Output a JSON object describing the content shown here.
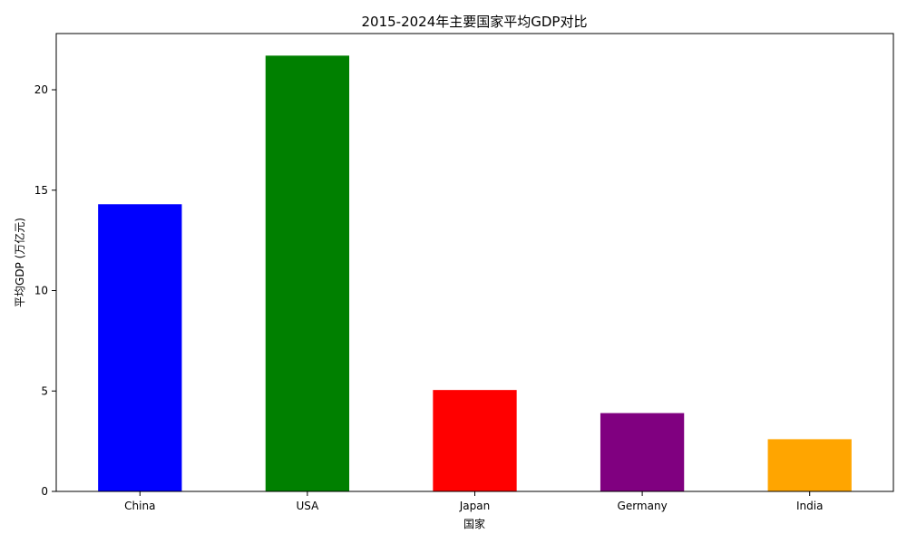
{
  "chart_data": {
    "type": "bar",
    "title": "2015-2024年主要国家平均GDP对比",
    "xlabel": "国家",
    "ylabel": "平均GDP (万亿元)",
    "categories": [
      "China",
      "USA",
      "Japan",
      "Germany",
      "India"
    ],
    "values": [
      14.3,
      21.7,
      5.05,
      3.9,
      2.6
    ],
    "colors": [
      "#0000ff",
      "#008000",
      "#ff0000",
      "#800080",
      "#ffa500"
    ],
    "ylim": [
      0,
      22.8
    ],
    "yticks": [
      0,
      5,
      10,
      15,
      20
    ],
    "grid": false,
    "legend": "none"
  }
}
